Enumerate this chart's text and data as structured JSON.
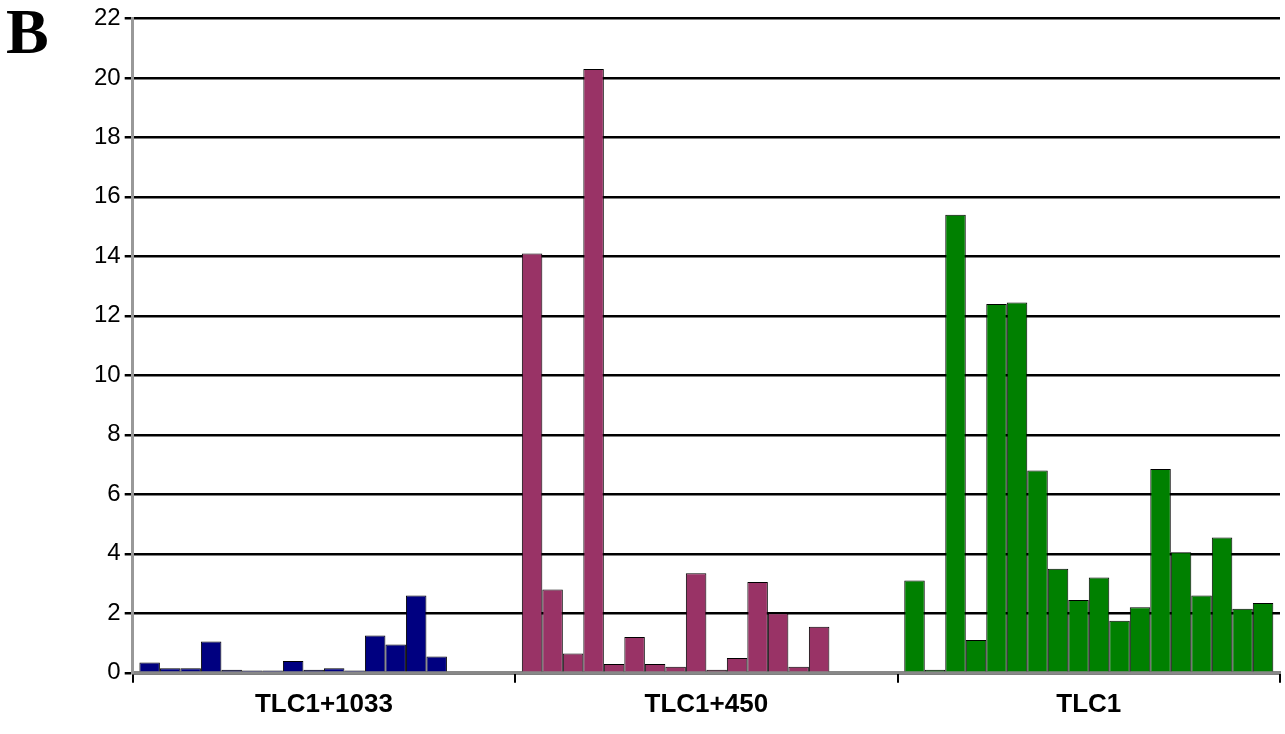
{
  "chart_data": {
    "type": "bar",
    "annotations": [
      "B"
    ],
    "categories": [
      "TLC1+1033",
      "TLC1+450",
      "TLC1"
    ],
    "ylim": [
      0,
      22
    ],
    "yticks": [
      0,
      2,
      4,
      6,
      8,
      10,
      12,
      14,
      16,
      18,
      20,
      22
    ],
    "grid": "y",
    "legend": false,
    "series": [
      {
        "values": [
          0.35,
          14.1,
          3.1
        ],
        "colors": [
          "#000080",
          "#993366",
          "#008000"
        ]
      },
      {
        "values": [
          0.15,
          2.8,
          0.1
        ],
        "colors": [
          "#000080",
          "#993366",
          "#008000"
        ]
      },
      {
        "values": [
          0.15,
          0.65,
          15.4
        ],
        "colors": [
          "#000080",
          "#993366",
          "#008000"
        ]
      },
      {
        "values": [
          1.05,
          20.3,
          1.1
        ],
        "colors": [
          "#000080",
          "#993366",
          "#008000"
        ]
      },
      {
        "values": [
          0.1,
          0.3,
          12.4
        ],
        "colors": [
          "#000080",
          "#993366",
          "#008000"
        ]
      },
      {
        "values": [
          0.08,
          1.2,
          12.45
        ],
        "colors": [
          "#000080",
          "#993366",
          "#008000"
        ]
      },
      {
        "values": [
          0.08,
          0.3,
          6.8
        ],
        "colors": [
          "#000080",
          "#993366",
          "#008000"
        ]
      },
      {
        "values": [
          0.4,
          0.2,
          3.5
        ],
        "colors": [
          "#000080",
          "#993366",
          "#008000"
        ]
      },
      {
        "values": [
          0.1,
          3.35,
          2.45
        ],
        "colors": [
          "#000080",
          "#993366",
          "#008000"
        ]
      },
      {
        "values": [
          0.15,
          0.1,
          3.2
        ],
        "colors": [
          "#000080",
          "#993366",
          "#008000"
        ]
      },
      {
        "values": [
          0.08,
          0.5,
          1.75
        ],
        "colors": [
          "#000080",
          "#993366",
          "#008000"
        ]
      },
      {
        "values": [
          1.25,
          3.05,
          2.2
        ],
        "colors": [
          "#000080",
          "#993366",
          "#008000"
        ]
      },
      {
        "values": [
          0.95,
          2.0,
          6.85
        ],
        "colors": [
          "#000080",
          "#993366",
          "#008000"
        ]
      },
      {
        "values": [
          2.6,
          0.2,
          4.05
        ],
        "colors": [
          "#000080",
          "#993366",
          "#008000"
        ]
      },
      {
        "values": [
          0.55,
          1.55,
          2.6
        ],
        "colors": [
          "#000080",
          "#993366",
          "#008000"
        ]
      },
      {
        "values": [
          null,
          null,
          4.55
        ],
        "colors": [
          "#000080",
          "#993366",
          "#008000"
        ]
      },
      {
        "values": [
          null,
          null,
          2.15
        ],
        "colors": [
          "#000080",
          "#993366",
          "#008000"
        ]
      },
      {
        "values": [
          null,
          null,
          2.35
        ],
        "colors": [
          "#000080",
          "#993366",
          "#008000"
        ]
      }
    ]
  }
}
